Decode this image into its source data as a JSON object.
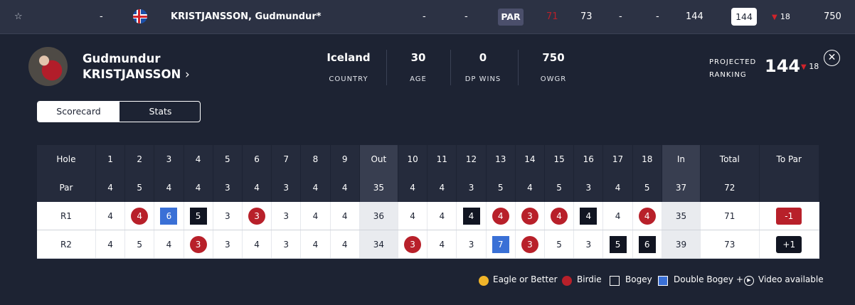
{
  "leaderboard_row": {
    "star": "☆",
    "pos": "-",
    "player": "KRISTJANSSON, Gudmundur*",
    "thru": "-",
    "today": "-",
    "par_label": "PAR",
    "r1": "71",
    "r2": "73",
    "r3": "-",
    "r4": "-",
    "total": "144",
    "projected": "144",
    "movement": "18",
    "owgr": "750"
  },
  "player": {
    "first": "Gudmundur",
    "last": "KRISTJANSSON",
    "chevron": "›",
    "stats": [
      {
        "value": "Iceland",
        "label": "COUNTRY"
      },
      {
        "value": "30",
        "label": "AGE"
      },
      {
        "value": "0",
        "label": "DP WINS"
      },
      {
        "value": "750",
        "label": "OWGR"
      }
    ],
    "projected_label_1": "PROJECTED",
    "projected_label_2": "RANKING",
    "projected_value": "144",
    "projected_move": "18"
  },
  "close": "✕",
  "tabs": {
    "scorecard": "Scorecard",
    "stats": "Stats"
  },
  "scorecard": {
    "hole_label": "Hole",
    "par_label": "Par",
    "holes": [
      "1",
      "2",
      "3",
      "4",
      "5",
      "6",
      "7",
      "8",
      "9",
      "Out",
      "10",
      "11",
      "12",
      "13",
      "14",
      "15",
      "16",
      "17",
      "18",
      "In",
      "Total",
      "To Par"
    ],
    "par": [
      "4",
      "5",
      "4",
      "4",
      "3",
      "4",
      "3",
      "4",
      "4",
      "35",
      "4",
      "4",
      "3",
      "5",
      "4",
      "5",
      "3",
      "4",
      "5",
      "37",
      "72",
      ""
    ],
    "rounds": [
      {
        "label": "R1",
        "scores": [
          {
            "v": "4",
            "t": ""
          },
          {
            "v": "4",
            "t": "birdie"
          },
          {
            "v": "6",
            "t": "dbl"
          },
          {
            "v": "5",
            "t": "bogey"
          },
          {
            "v": "3",
            "t": ""
          },
          {
            "v": "3",
            "t": "birdie"
          },
          {
            "v": "3",
            "t": ""
          },
          {
            "v": "4",
            "t": ""
          },
          {
            "v": "4",
            "t": ""
          },
          {
            "v": "36",
            "t": "sub"
          },
          {
            "v": "4",
            "t": ""
          },
          {
            "v": "4",
            "t": ""
          },
          {
            "v": "4",
            "t": "bogey"
          },
          {
            "v": "4",
            "t": "birdie"
          },
          {
            "v": "3",
            "t": "birdie"
          },
          {
            "v": "4",
            "t": "birdie"
          },
          {
            "v": "4",
            "t": "bogey"
          },
          {
            "v": "4",
            "t": ""
          },
          {
            "v": "4",
            "t": "birdie"
          },
          {
            "v": "35",
            "t": "sub"
          },
          {
            "v": "71",
            "t": ""
          },
          {
            "v": "-1",
            "t": "neg"
          }
        ]
      },
      {
        "label": "R2",
        "scores": [
          {
            "v": "4",
            "t": ""
          },
          {
            "v": "5",
            "t": ""
          },
          {
            "v": "4",
            "t": ""
          },
          {
            "v": "3",
            "t": "birdie"
          },
          {
            "v": "3",
            "t": ""
          },
          {
            "v": "4",
            "t": ""
          },
          {
            "v": "3",
            "t": ""
          },
          {
            "v": "4",
            "t": ""
          },
          {
            "v": "4",
            "t": ""
          },
          {
            "v": "34",
            "t": "sub"
          },
          {
            "v": "3",
            "t": "birdie"
          },
          {
            "v": "4",
            "t": ""
          },
          {
            "v": "3",
            "t": ""
          },
          {
            "v": "7",
            "t": "dbl"
          },
          {
            "v": "3",
            "t": "birdie"
          },
          {
            "v": "5",
            "t": ""
          },
          {
            "v": "3",
            "t": ""
          },
          {
            "v": "5",
            "t": "bogey"
          },
          {
            "v": "6",
            "t": "bogey"
          },
          {
            "v": "39",
            "t": "sub"
          },
          {
            "v": "73",
            "t": ""
          },
          {
            "v": "+1",
            "t": "pos"
          }
        ]
      }
    ]
  },
  "legend": {
    "eagle": "Eagle or Better",
    "birdie": "Birdie",
    "bogey": "Bogey",
    "double": "Double Bogey +",
    "video": "Video available"
  },
  "colors": {
    "birdie": "#b8202a",
    "bogey": "#111522",
    "double": "#3a70d6",
    "eagle": "#f0b429"
  }
}
